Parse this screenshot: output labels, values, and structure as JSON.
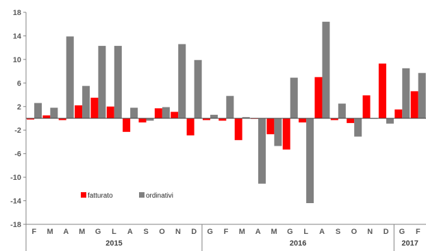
{
  "chart_data": {
    "type": "bar",
    "categories": [
      "F",
      "M",
      "A",
      "M",
      "G",
      "L",
      "A",
      "S",
      "O",
      "N",
      "D",
      "G",
      "F",
      "M",
      "A",
      "M",
      "G",
      "L",
      "A",
      "S",
      "O",
      "N",
      "D",
      "G",
      "F"
    ],
    "years": [
      {
        "label": "2015",
        "from": 0,
        "to": 10
      },
      {
        "label": "2016",
        "from": 11,
        "to": 22
      },
      {
        "label": "2017",
        "from": 23,
        "to": 24
      }
    ],
    "series": [
      {
        "name": "fatturato",
        "color": "#ff0000",
        "values": [
          -0.2,
          0.5,
          -0.3,
          2.2,
          3.5,
          2.0,
          -2.3,
          -0.7,
          1.7,
          1.1,
          -2.9,
          -0.3,
          -0.4,
          -3.7,
          0.0,
          -2.7,
          -5.3,
          -0.7,
          7.0,
          -0.3,
          -0.8,
          3.9,
          9.3,
          1.5,
          4.6
        ]
      },
      {
        "name": "ordinativi",
        "color": "#808080",
        "values": [
          2.6,
          1.8,
          13.9,
          5.5,
          12.3,
          12.3,
          1.8,
          -0.4,
          1.9,
          12.6,
          9.9,
          0.6,
          3.8,
          0.2,
          -11.1,
          -4.7,
          6.9,
          -14.4,
          16.4,
          2.5,
          -3.1,
          0.0,
          -0.9,
          8.5,
          7.7
        ]
      }
    ],
    "ylim": [
      -18,
      18
    ],
    "yticks": [
      18,
      14,
      10,
      6,
      2,
      -2,
      -6,
      -10,
      -14,
      -18
    ],
    "legend_position": "bottom-left",
    "grid": false
  }
}
